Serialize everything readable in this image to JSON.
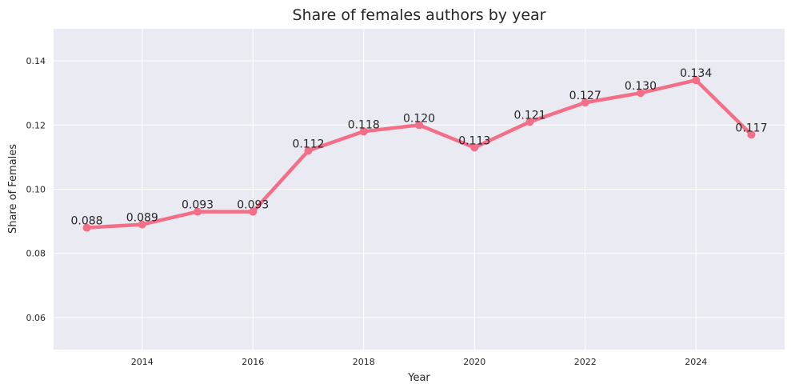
{
  "chart_data": {
    "type": "line",
    "title": "Share of females authors by year",
    "xlabel": "Year",
    "ylabel": "Share of Females",
    "x": [
      2013,
      2014,
      2015,
      2016,
      2017,
      2018,
      2019,
      2020,
      2021,
      2022,
      2023,
      2024,
      2025
    ],
    "series": [
      {
        "values": [
          0.088,
          0.089,
          0.093,
          0.093,
          0.112,
          0.118,
          0.12,
          0.113,
          0.121,
          0.127,
          0.13,
          0.134,
          0.117
        ],
        "labels": [
          "0.088",
          "0.089",
          "0.093",
          "0.093",
          "0.112",
          "0.118",
          "0.120",
          "0.113",
          "0.121",
          "0.127",
          "0.130",
          "0.134",
          "0.117"
        ],
        "color": "#f26f87"
      }
    ],
    "xlim": [
      2012.4,
      2025.6
    ],
    "ylim": [
      0.05,
      0.15
    ],
    "xticks": [
      2014,
      2016,
      2018,
      2020,
      2022,
      2024
    ],
    "xtick_labels": [
      "2014",
      "2016",
      "2018",
      "2020",
      "2022",
      "2024"
    ],
    "yticks": [
      0.06,
      0.08,
      0.1,
      0.12,
      0.14
    ],
    "ytick_labels": [
      "0.06",
      "0.08",
      "0.10",
      "0.12",
      "0.14"
    ],
    "grid": true,
    "background_color": "#eaeaf2",
    "grid_color": "#ffffff"
  }
}
